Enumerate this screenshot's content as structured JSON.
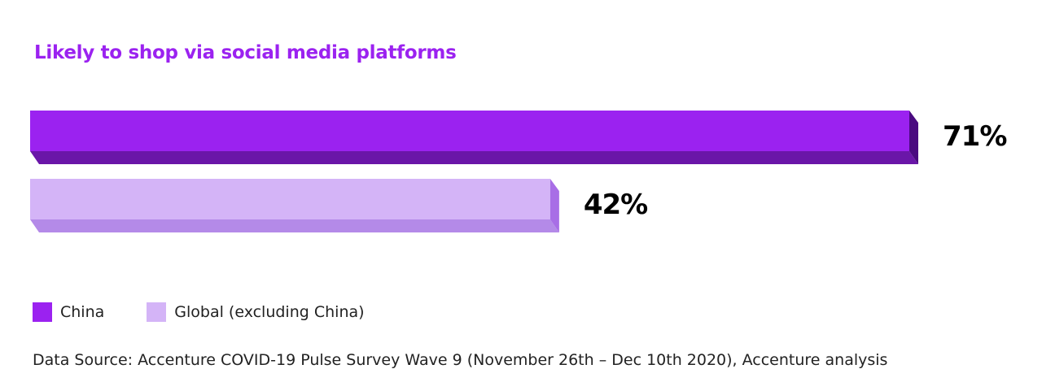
{
  "chart_data": {
    "type": "bar",
    "orientation": "horizontal",
    "title": "Likely to shop via social media platforms",
    "categories": [
      "China",
      "Global (excluding China)"
    ],
    "values": [
      71,
      42
    ],
    "value_labels": [
      "71%",
      "42%"
    ],
    "unit": "%",
    "xlim": [
      0,
      100
    ],
    "grid": false,
    "legend_position": "bottom-left",
    "series": [
      {
        "name": "China",
        "value": 71,
        "color": "#9b22f0",
        "shade_color": "#6a16a8",
        "side_color": "#4a0a80"
      },
      {
        "name": "Global (excluding China)",
        "value": 42,
        "color": "#d4b4f7",
        "shade_color": "#b48ae8",
        "side_color": "#a86ee6"
      }
    ]
  },
  "source": "Data Source: Accenture COVID-19 Pulse Survey Wave 9 (November 26th – Dec 10th 2020), Accenture analysis"
}
